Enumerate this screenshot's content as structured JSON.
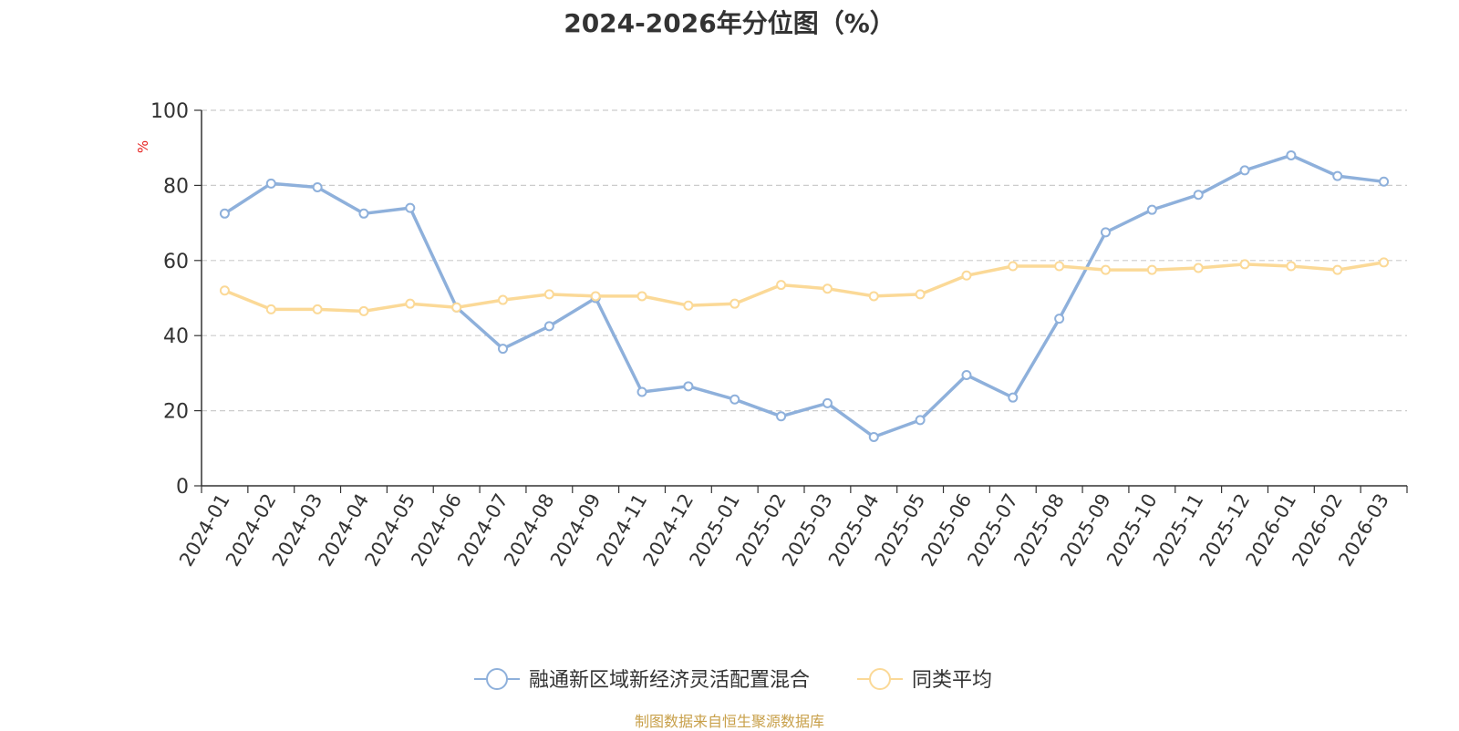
{
  "chart_data": {
    "type": "line",
    "title": "2024-2026年分位图（%）",
    "ylabel": "%",
    "ylim": [
      0,
      100
    ],
    "yticks": [
      0,
      20,
      40,
      60,
      80,
      100
    ],
    "grid": true,
    "legend_position": "bottom",
    "categories": [
      "2024-01",
      "2024-02",
      "2024-03",
      "2024-04",
      "2024-05",
      "2024-06",
      "2024-07",
      "2024-08",
      "2024-09",
      "2024-11",
      "2024-12",
      "2025-01",
      "2025-02",
      "2025-03",
      "2025-04",
      "2025-05",
      "2025-06",
      "2025-07",
      "2025-08",
      "2025-09",
      "2025-10",
      "2025-11",
      "2025-12",
      "2026-01",
      "2026-02",
      "2026-03"
    ],
    "series": [
      {
        "name": "融通新区域新经济灵活配置混合",
        "color": "#8eb0db",
        "values": [
          72.5,
          80.5,
          79.5,
          72.5,
          74,
          47.5,
          36.5,
          42.5,
          50,
          25,
          26.5,
          23,
          18.5,
          22,
          13,
          17.5,
          29.5,
          23.5,
          44.5,
          67.5,
          73.5,
          77.5,
          84,
          88,
          82.5,
          81
        ]
      },
      {
        "name": "同类平均",
        "color": "#fbd997",
        "values": [
          52,
          47,
          47,
          46.5,
          48.5,
          47.5,
          49.5,
          51,
          50.5,
          50.5,
          48,
          48.5,
          53.5,
          52.5,
          50.5,
          51,
          56,
          58.5,
          58.5,
          57.5,
          57.5,
          58,
          59,
          58.5,
          57.5,
          59.5
        ]
      }
    ]
  },
  "footer": "制图数据来自恒生聚源数据库"
}
